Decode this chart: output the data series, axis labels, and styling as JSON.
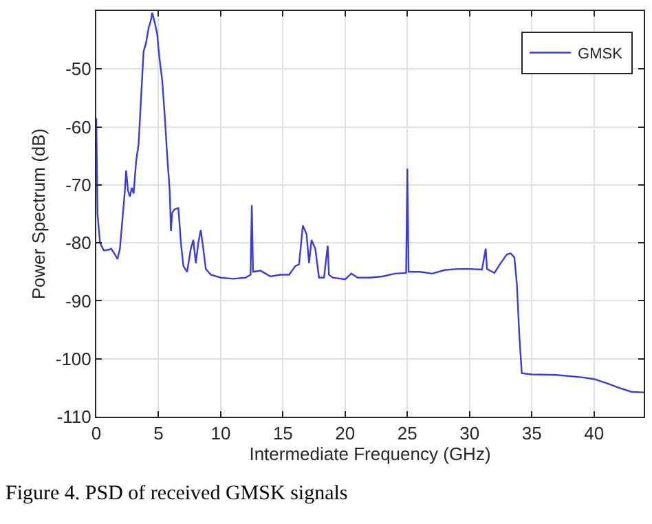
{
  "chart_data": {
    "type": "line",
    "xlabel": "Intermediate Frequency (GHz)",
    "ylabel": "Power Spectrum (dB)",
    "x": [
      0,
      0.1,
      0.3,
      0.6,
      1.0,
      1.2,
      1.5,
      1.7,
      1.9,
      2.1,
      2.3,
      2.4,
      2.55,
      2.7,
      2.85,
      3.0,
      3.2,
      3.4,
      3.6,
      3.8,
      4.0,
      4.2,
      4.4,
      4.5,
      4.7,
      4.9,
      5.0,
      5.1,
      5.3,
      5.5,
      5.7,
      5.9,
      6.0,
      6.1,
      6.3,
      6.6,
      6.8,
      7.0,
      7.3,
      7.6,
      7.8,
      8.0,
      8.2,
      8.4,
      8.6,
      8.8,
      9.2,
      10,
      11,
      12,
      12.4,
      12.5,
      12.6,
      13.2,
      14,
      14.8,
      15.5,
      16,
      16.3,
      16.6,
      16.9,
      17.1,
      17.3,
      17.6,
      17.9,
      18.3,
      18.6,
      18.7,
      19,
      20,
      20.5,
      21,
      22,
      23,
      24,
      24.9,
      25.0,
      25.1,
      26,
      27,
      28,
      29,
      30,
      31,
      31.3,
      31.4,
      32,
      32.5,
      33,
      33.3,
      33.6,
      33.8,
      34.0,
      34.2,
      35,
      37,
      39,
      40,
      41,
      42,
      43,
      44
    ],
    "series": [
      {
        "name": "GMSK",
        "color": "#3a3ae0",
        "values": [
          -58.5,
          -75,
          -80,
          -81.3,
          -81.2,
          -81,
          -82,
          -82.8,
          -81,
          -76,
          -71,
          -67.5,
          -71,
          -72,
          -70.5,
          -71.5,
          -66,
          -63,
          -55,
          -47,
          -45.5,
          -43,
          -41.5,
          -40.3,
          -42,
          -44,
          -46.5,
          -48.5,
          -52,
          -58,
          -65,
          -71,
          -78,
          -74.8,
          -74.2,
          -74,
          -80,
          -84,
          -85,
          -81,
          -79.5,
          -83.5,
          -80,
          -77.8,
          -81,
          -84.5,
          -85.5,
          -86,
          -86.2,
          -86,
          -85.5,
          -73.5,
          -85,
          -84.8,
          -85.8,
          -85.5,
          -85.5,
          -84,
          -83.7,
          -77,
          -78.5,
          -83.5,
          -79.5,
          -81,
          -86,
          -86,
          -80.5,
          -85.5,
          -86,
          -86.3,
          -85.3,
          -86,
          -86,
          -85.8,
          -85.3,
          -85.2,
          -67.2,
          -85,
          -85,
          -85.3,
          -84.7,
          -84.5,
          -84.5,
          -84.6,
          -81,
          -84.5,
          -85.2,
          -83.5,
          -82,
          -81.8,
          -82.5,
          -87,
          -96,
          -102.5,
          -102.7,
          -102.8,
          -103.2,
          -103.5,
          -104.2,
          -105,
          -105.7,
          -105.8
        ]
      }
    ],
    "xlim": [
      0,
      44
    ],
    "ylim": [
      -110,
      -40
    ],
    "xticks": [
      0,
      5,
      10,
      15,
      20,
      25,
      30,
      35,
      40
    ],
    "yticks": [
      -110,
      -100,
      -90,
      -80,
      -70,
      -60,
      -50
    ],
    "grid": true,
    "legend": "top right",
    "marker": "none",
    "line_style": "solid",
    "annotations": [
      "Figure 4. PSD of received GMSK signals"
    ]
  }
}
